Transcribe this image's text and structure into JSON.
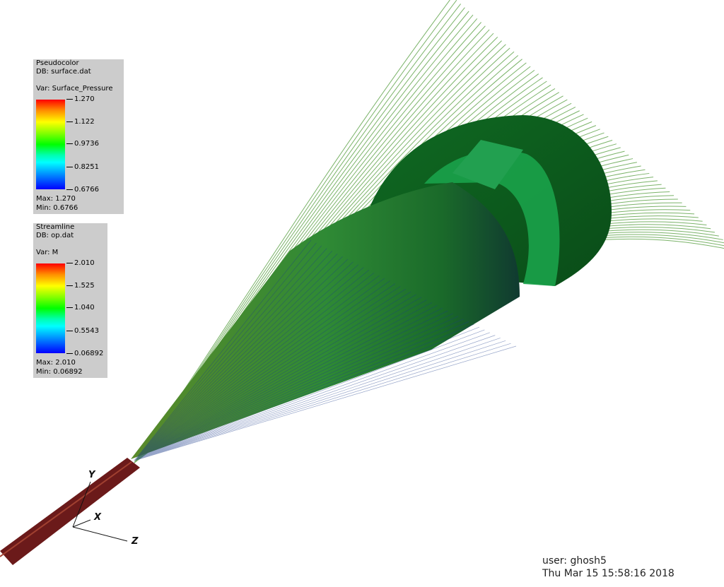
{
  "legend_surface": {
    "plot_type": "Pseudocolor",
    "db": "DB: surface.dat",
    "var": "Var: Surface_Pressure",
    "ticks": [
      "1.270",
      "1.122",
      "0.9736",
      "0.8251",
      "0.6766"
    ],
    "max": "Max:  1.270",
    "min": "Min:  0.6766"
  },
  "legend_streamline": {
    "plot_type": "Streamline",
    "db": "DB: op.dat",
    "var": "Var: M",
    "ticks": [
      "2.010",
      "1.525",
      "1.040",
      "0.5543",
      "0.06892"
    ],
    "max": "Max:  2.010",
    "min": "Min:  0.06892"
  },
  "axes": {
    "y": "Y",
    "x": "X",
    "z": "Z"
  },
  "footer": {
    "user": "user: ghosh5",
    "timestamp": "Thu Mar 15 15:58:16 2018"
  },
  "colors": {
    "background": "#ffffff",
    "streamline_green": "#4f9a38",
    "body_dark_green": "#0f5f1f",
    "inlet_red": "#6b1a1a"
  }
}
